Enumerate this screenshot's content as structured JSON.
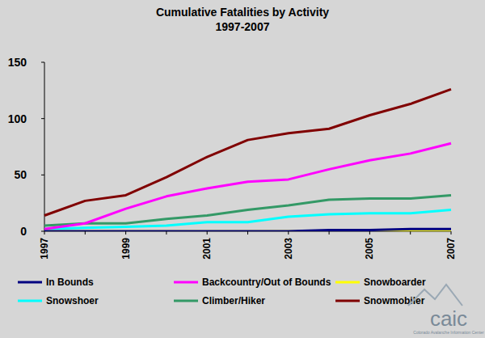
{
  "chart_data": {
    "type": "line",
    "title": "Cumulative Fatalities by Activity",
    "subtitle": "1997-2007",
    "categories": [
      "1997",
      null,
      "1999",
      null,
      "2001",
      null,
      "2003",
      null,
      "2005",
      null,
      "2007"
    ],
    "series": [
      {
        "name": "In Bounds",
        "color": "#000080",
        "values": [
          0,
          0,
          0,
          0,
          0,
          0,
          0,
          1,
          1,
          2,
          2
        ]
      },
      {
        "name": "Backcountry/Out of Bounds",
        "color": "#ff00ff",
        "values": [
          2,
          7,
          20,
          31,
          38,
          44,
          46,
          55,
          63,
          69,
          78
        ]
      },
      {
        "name": "Snowboarder",
        "color": "#ffff00",
        "values": [
          0,
          0,
          0,
          0,
          0,
          0,
          0,
          0,
          0,
          0,
          0
        ]
      },
      {
        "name": "Snowshoer",
        "color": "#00ffff",
        "values": [
          2,
          3,
          4,
          5,
          8,
          8,
          13,
          15,
          16,
          16,
          19
        ]
      },
      {
        "name": "Climber/Hiker",
        "color": "#339966",
        "values": [
          5,
          7,
          7,
          11,
          14,
          19,
          23,
          28,
          29,
          29,
          32
        ]
      },
      {
        "name": "Snowmobiler",
        "color": "#800000",
        "values": [
          14,
          27,
          32,
          48,
          66,
          81,
          87,
          91,
          103,
          113,
          126
        ]
      }
    ],
    "ylim": [
      0,
      150
    ],
    "yticks": [
      0,
      50,
      100,
      150
    ],
    "grid": false,
    "legend": "bottom"
  },
  "logo": {
    "text": "caic",
    "subtitle": "Colorado Avalanche Information Center"
  }
}
